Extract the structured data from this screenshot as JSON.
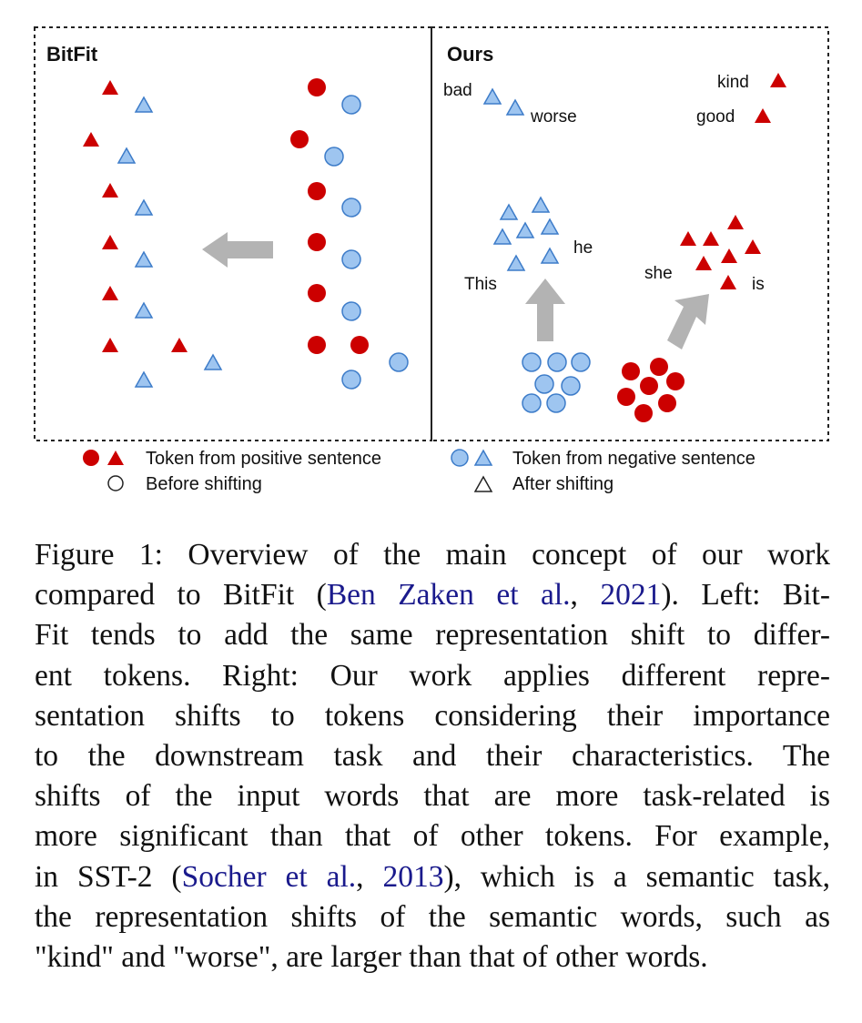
{
  "figure": {
    "left_panel_title": "BitFit",
    "right_panel_title": "Ours",
    "words": {
      "bad": "bad",
      "worse": "worse",
      "kind": "kind",
      "good": "good",
      "this": "This",
      "he": "he",
      "she": "she",
      "is": "is"
    },
    "legend": {
      "positive": "Token from positive sentence",
      "negative": "Token from negative sentence",
      "before": "Before shifting",
      "after": "After shifting"
    },
    "colors": {
      "positive": "#cc0000",
      "negative": "#9ec5f0",
      "negative_stroke": "#3d7cc9",
      "arrow": "#b3b3b3"
    }
  },
  "caption": {
    "lines": [
      [
        "Figure 1: Overview of the main concept of our work"
      ],
      [
        "compared to BitFit (",
        {
          "cite": "Ben Zaken et al."
        },
        ", ",
        {
          "cite": "2021"
        },
        "). Left: Bit-"
      ],
      [
        "Fit tends to add the same representation shift to differ-"
      ],
      [
        "ent tokens.  Right: Our work applies different repre-"
      ],
      [
        "sentation shifts to tokens considering their importance"
      ],
      [
        "to the downstream task and their characteristics.  The"
      ],
      [
        "shifts of the input words that are more task-related is"
      ],
      [
        "more significant than that of other tokens. For example,"
      ],
      [
        "in SST-2 (",
        {
          "cite": "Socher et al."
        },
        ", ",
        {
          "cite": "2013"
        },
        "), which is a semantic task,"
      ],
      [
        "the representation shifts of the semantic words, such as"
      ],
      [
        "\"kind\" and \"worse\", are larger than that of other words."
      ]
    ]
  }
}
